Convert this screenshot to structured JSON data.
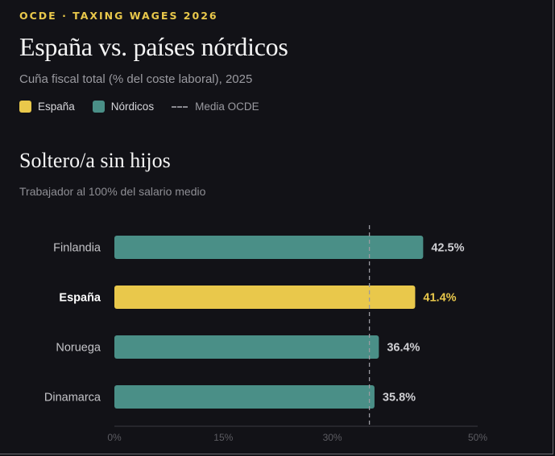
{
  "header": {
    "kicker": "OCDE · TAXING WAGES 2026",
    "title": "España vs. países nórdicos",
    "subtitle": "Cuña fiscal total (% del coste laboral), 2025"
  },
  "legend": [
    {
      "label": "España",
      "color": "#e9c84b",
      "kind": "swatch"
    },
    {
      "label": "Nórdicos",
      "color": "#4a8f87",
      "kind": "swatch"
    },
    {
      "label": "Media OCDE",
      "color": "#8a8a90",
      "kind": "dashed-line"
    }
  ],
  "section": {
    "title": "Soltero/a sin hijos",
    "subtitle": "Trabajador al 100% del salario medio"
  },
  "chart_data": {
    "type": "bar",
    "orientation": "horizontal",
    "categories": [
      "Finlandia",
      "España",
      "Noruega",
      "Dinamarca"
    ],
    "values": [
      42.5,
      41.4,
      36.4,
      35.8
    ],
    "value_labels": [
      "42.5%",
      "41.4%",
      "36.4%",
      "35.8%"
    ],
    "highlight": "España",
    "colors": {
      "highlight": "#e9c84b",
      "default": "#4a8f87"
    },
    "xlim": [
      0,
      50
    ],
    "xticks": [
      0,
      15,
      30,
      50
    ],
    "xtick_labels": [
      "0%",
      "15%",
      "30%",
      "50%"
    ],
    "reference_line": {
      "label": "Media OCDE",
      "value": 35.1
    }
  }
}
